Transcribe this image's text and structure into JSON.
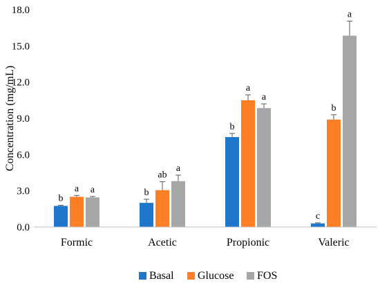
{
  "chart_data": {
    "type": "bar",
    "title": "",
    "xlabel": "",
    "ylabel": "Concentration (mg/mL)",
    "ylim": [
      0,
      18
    ],
    "yticks": [
      "0.0",
      "3.0",
      "6.0",
      "9.0",
      "12.0",
      "15.0",
      "18.0"
    ],
    "grid": false,
    "legend_position": "bottom",
    "categories": [
      "Formic",
      "Acetic",
      "Propionic",
      "Valeric"
    ],
    "series": [
      {
        "name": "Basal",
        "color": "#1F77CC",
        "values": [
          1.75,
          2.0,
          7.45,
          0.3
        ],
        "errors": [
          0.05,
          0.3,
          0.3,
          0.05
        ],
        "labels": [
          "b",
          "b",
          "b",
          "c"
        ]
      },
      {
        "name": "Glucose",
        "color": "#FF7F27",
        "values": [
          2.5,
          3.05,
          10.5,
          8.9
        ],
        "errors": [
          0.12,
          0.7,
          0.45,
          0.4
        ],
        "labels": [
          "a",
          "ab",
          "a",
          "b"
        ]
      },
      {
        "name": "FOS",
        "color": "#A6A6A6",
        "values": [
          2.45,
          3.8,
          9.85,
          15.85
        ],
        "errors": [
          0.08,
          0.5,
          0.35,
          1.2
        ],
        "labels": [
          "a",
          "a",
          "a",
          "a"
        ]
      }
    ]
  }
}
